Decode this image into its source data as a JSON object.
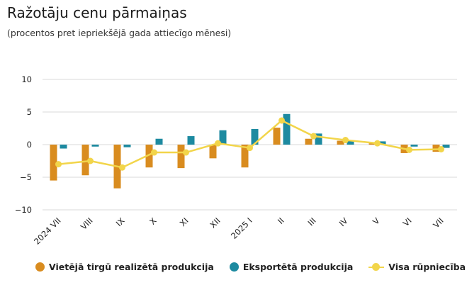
{
  "header": {
    "title": "Ražotāju cenu pārmaiņas",
    "subtitle": "(procentos pret iepriekšējā gada attiecīgo mēnesi)"
  },
  "colors": {
    "domestic": "#d98c1f",
    "export": "#1d8aa0",
    "total": "#f2d54a",
    "grid": "#d9d9d9"
  },
  "chart_data": {
    "type": "bar",
    "categories": [
      "2024 VII",
      "VIII",
      "IX",
      "X",
      "XI",
      "XII",
      "2025 I",
      "II",
      "III",
      "IV",
      "V",
      "VI",
      "VII"
    ],
    "ylim": [
      -10,
      10
    ],
    "yticks": [
      10,
      5,
      0,
      -5,
      -10
    ],
    "grid": true,
    "legend_position": "bottom",
    "series": [
      {
        "name": "Vietējā tirgū realizētā produkcija",
        "type": "bar",
        "values": [
          -5.5,
          -4.7,
          -6.7,
          -3.5,
          -3.6,
          -2.1,
          -3.5,
          2.6,
          0.9,
          0.6,
          0.2,
          -1.3,
          -1.1
        ]
      },
      {
        "name": "Eksportētā produkcija",
        "type": "bar",
        "values": [
          -0.6,
          -0.3,
          -0.4,
          0.9,
          1.3,
          2.2,
          2.4,
          4.7,
          1.7,
          0.6,
          0.5,
          -0.3,
          -0.5
        ]
      },
      {
        "name": "Visa rūpniecība",
        "type": "line",
        "values": [
          -3.0,
          -2.5,
          -3.5,
          -1.2,
          -1.2,
          0.2,
          -0.5,
          3.7,
          1.3,
          0.7,
          0.2,
          -0.8,
          -0.7
        ]
      }
    ]
  }
}
